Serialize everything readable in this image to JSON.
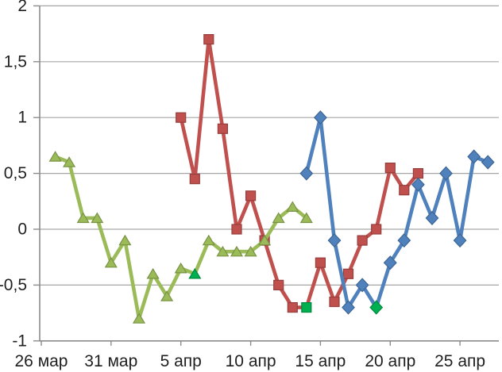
{
  "page": {
    "background": "#FFFFFF",
    "top_border_color": "#000000"
  },
  "chart_data": {
    "type": "line",
    "title": "",
    "legend": "none",
    "grid": true,
    "x_axis": {
      "tick_labels": [
        "26 мар",
        "31 мар",
        "5 апр",
        "10 апр",
        "15 апр",
        "20 апр",
        "25 апр"
      ],
      "tick_days": [
        0,
        5,
        10,
        15,
        20,
        25,
        30
      ],
      "day_zero_label": "26 мар",
      "visible_day_range": [
        0,
        32.8
      ]
    },
    "y_axis": {
      "tick_labels": [
        "2",
        "1,5",
        "1",
        "0,5",
        "0",
        "-0,5",
        "-1"
      ],
      "tick_values": [
        2,
        1.5,
        1,
        0.5,
        0,
        -0.5,
        -1
      ],
      "range": [
        -1,
        2
      ],
      "decimal_separator": ","
    },
    "series": [
      {
        "name": "red-squares",
        "color": "#C0504D",
        "marker": "square",
        "points": [
          [
            10,
            1.0
          ],
          [
            11,
            0.45
          ],
          [
            12,
            1.7
          ],
          [
            13,
            0.9
          ],
          [
            14,
            0.0
          ],
          [
            15,
            0.3
          ],
          [
            16,
            -0.1
          ],
          [
            17,
            -0.5
          ],
          [
            18,
            -0.7
          ],
          [
            19,
            -0.7
          ],
          [
            20,
            -0.3
          ],
          [
            21,
            -0.65
          ],
          [
            22,
            -0.4
          ],
          [
            23,
            -0.1
          ],
          [
            24,
            0.0
          ],
          [
            25,
            0.55
          ],
          [
            26,
            0.35
          ],
          [
            27,
            0.5
          ]
        ],
        "highlight_day": 19,
        "highlight_color": "#00B050"
      },
      {
        "name": "green-triangles",
        "color": "#9BBB59",
        "marker": "triangle",
        "points": [
          [
            1,
            0.65
          ],
          [
            2,
            0.6
          ],
          [
            3,
            0.1
          ],
          [
            4,
            0.1
          ],
          [
            5,
            -0.3
          ],
          [
            6,
            -0.1
          ],
          [
            7,
            -0.8
          ],
          [
            8,
            -0.4
          ],
          [
            9,
            -0.6
          ],
          [
            10,
            -0.35
          ],
          [
            11,
            -0.4
          ],
          [
            12,
            -0.1
          ],
          [
            13,
            -0.2
          ],
          [
            14,
            -0.2
          ],
          [
            15,
            -0.2
          ],
          [
            16,
            -0.1
          ],
          [
            17,
            0.1
          ],
          [
            18,
            0.2
          ],
          [
            19,
            0.1
          ]
        ],
        "highlight_day": 11,
        "highlight_color": "#00B050"
      },
      {
        "name": "blue-diamonds",
        "color": "#4F81BD",
        "marker": "diamond",
        "points": [
          [
            19,
            0.5
          ],
          [
            20,
            1.0
          ],
          [
            21,
            -0.1
          ],
          [
            22,
            -0.7
          ],
          [
            23,
            -0.5
          ],
          [
            24,
            -0.7
          ],
          [
            25,
            -0.3
          ],
          [
            26,
            -0.1
          ],
          [
            27,
            0.4
          ],
          [
            28,
            0.1
          ],
          [
            29,
            0.5
          ],
          [
            30,
            -0.1
          ],
          [
            31,
            0.65
          ],
          [
            32,
            0.6
          ]
        ],
        "highlight_day": 24,
        "highlight_color": "#00B050"
      }
    ],
    "colors": {
      "gridline": "#A6A6A6",
      "axis": "#8C8C8C",
      "tick_text": "#1F1F1F",
      "highlight": "#00B050"
    }
  }
}
